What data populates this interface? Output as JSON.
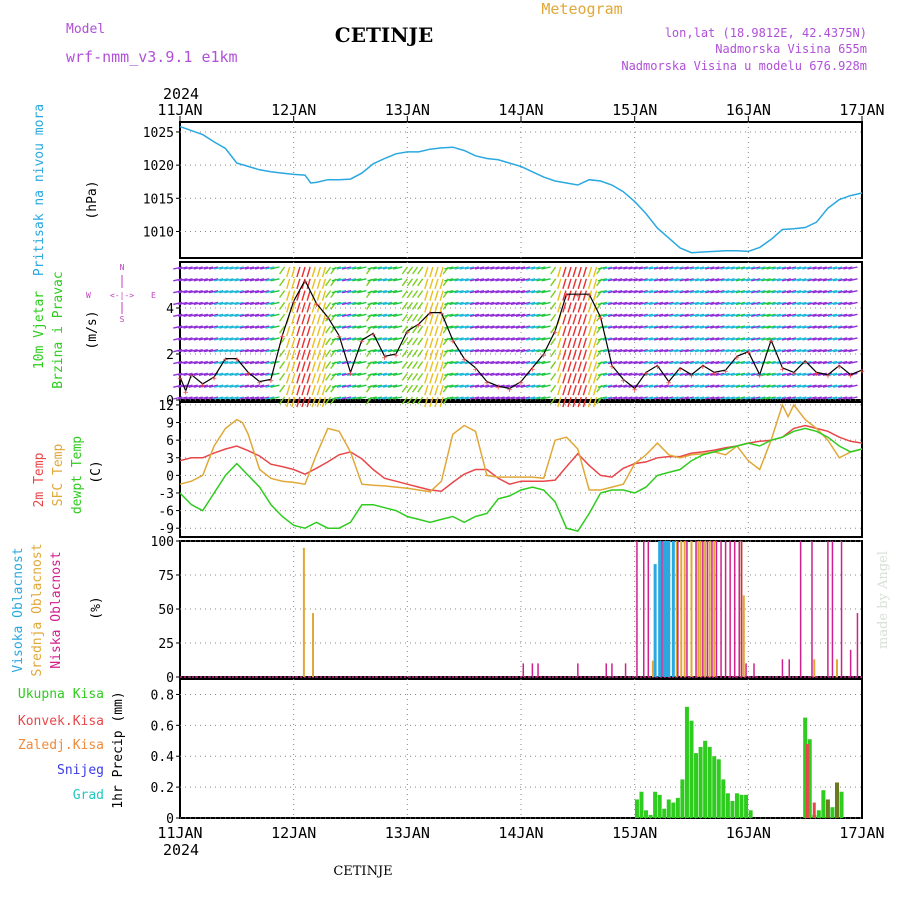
{
  "header": {
    "model_label": "Model",
    "model_name": "wrf-nmm_v3.9.1 e1km",
    "station": "CETINJE",
    "meteogram": "Meteogram",
    "lonlat": "lon,lat (18.9812E, 42.4375N)",
    "altitude": "Nadmorska Visina 655m",
    "model_altitude": "Nadmorska Visina u modelu 676.928m"
  },
  "footer": {
    "station": "CETINJE",
    "credit": "made by Angel"
  },
  "time_axis": {
    "year": "2024",
    "days": [
      "11JAN",
      "12JAN",
      "13JAN",
      "14JAN",
      "15JAN",
      "16JAN",
      "17JAN"
    ]
  },
  "colors": {
    "pressure": "#2aa8e0",
    "temp2m": "#e8474a",
    "tsfc": "#e0a838",
    "dewpt": "#2ecc1e",
    "high_cloud": "#2aa8e0",
    "mid_cloud": "#e0a838",
    "low_cloud": "#d0208e",
    "total_precip": "#2ecc1e",
    "conv_precip": "#e8474a",
    "frozen": "#f08a3a",
    "snow": "#3a3ae8",
    "hail": "#1ec8c0",
    "wind_label": "#2ecc1e",
    "compass": "#c040c0",
    "title_purple": "#b050d8"
  },
  "panels": {
    "pressure": {
      "label1": "Pritisak na nivou mora",
      "unit": "(hPa)",
      "ticks": [
        "1010",
        "1015",
        "1020",
        "1025"
      ]
    },
    "wind": {
      "label1": "10m Vjetar",
      "label2": "Brzina i Pravac",
      "unit": "(m/s)",
      "ticks": [
        "0",
        "2",
        "4"
      ],
      "compass": {
        "n": "N",
        "e": "E",
        "w": "W",
        "s": "S",
        "arrow": "<-|->"
      }
    },
    "temp": {
      "label1": "2m Temp",
      "label2": "SFC Temp",
      "label3": "dewpt Temp",
      "unit": "(C)",
      "ticks": [
        "-9",
        "-6",
        "-3",
        "0",
        "3",
        "6",
        "9",
        "12"
      ]
    },
    "cloud": {
      "label1": "Visoka Oblacnost",
      "label2": "Srednja Oblacnost",
      "label3": "Niska Oblacnost",
      "unit": "(%)",
      "ticks": [
        "0",
        "25",
        "50",
        "75",
        "100"
      ]
    },
    "precip": {
      "legend": [
        "Ukupna Kisa",
        "Konvek.Kisa",
        "Zaledj.Kisa",
        "Snijeg",
        "Grad"
      ],
      "unit": "1hr Precip (mm)",
      "ticks": [
        "0",
        "0.2",
        "0.4",
        "0.6",
        "0.8"
      ]
    }
  },
  "chart_data": [
    {
      "type": "line",
      "title": "Pritisak na nivou mora",
      "ylabel": "(hPa)",
      "ylim": [
        1006,
        1026.5
      ],
      "grid": true,
      "x_unit": "days since 11JAN 00UTC",
      "series": [
        {
          "name": "Pritisak na nivou mora",
          "x": [
            0,
            0.1,
            0.2,
            0.3,
            0.4,
            0.5,
            0.6,
            0.7,
            0.8,
            0.9,
            1.0,
            1.1,
            1.15,
            1.2,
            1.3,
            1.4,
            1.5,
            1.6,
            1.7,
            1.8,
            1.9,
            2.0,
            2.1,
            2.2,
            2.3,
            2.4,
            2.5,
            2.6,
            2.7,
            2.8,
            2.9,
            3.0,
            3.1,
            3.2,
            3.3,
            3.4,
            3.5,
            3.6,
            3.7,
            3.8,
            3.9,
            4.0,
            4.1,
            4.2,
            4.3,
            4.4,
            4.5,
            4.6,
            4.7,
            4.8,
            4.9,
            5.0,
            5.1,
            5.2,
            5.3,
            5.4,
            5.5,
            5.6,
            5.7,
            5.8,
            5.9,
            6.0
          ],
          "values": [
            1025.8,
            1025.2,
            1024.6,
            1023.5,
            1022.5,
            1020.3,
            1019.8,
            1019.3,
            1019.0,
            1018.8,
            1018.6,
            1018.5,
            1017.3,
            1017.4,
            1017.8,
            1017.8,
            1017.9,
            1018.8,
            1020.2,
            1021.0,
            1021.7,
            1022.0,
            1022.0,
            1022.4,
            1022.6,
            1022.7,
            1022.2,
            1021.4,
            1021.0,
            1020.8,
            1020.3,
            1019.8,
            1019.0,
            1018.2,
            1017.6,
            1017.3,
            1017.0,
            1017.8,
            1017.6,
            1017.0,
            1016.0,
            1014.5,
            1012.7,
            1010.5,
            1009.0,
            1007.5,
            1006.8,
            1006.9,
            1007.0,
            1007.1,
            1007.1,
            1007.0,
            1007.6,
            1008.8,
            1010.3,
            1010.4,
            1010.6,
            1011.4,
            1013.5,
            1014.8,
            1015.4,
            1015.8
          ]
        }
      ]
    },
    {
      "type": "line",
      "title": "10m Vjetar Brzina i Pravac",
      "ylabel": "(m/s)",
      "ylim": [
        0,
        6
      ],
      "grid": true,
      "x_unit": "days since 11JAN 00UTC",
      "series": [
        {
          "name": "10m Vjetar",
          "x": [
            0,
            0.05,
            0.1,
            0.2,
            0.3,
            0.4,
            0.5,
            0.6,
            0.7,
            0.8,
            0.9,
            1.0,
            1.1,
            1.2,
            1.3,
            1.4,
            1.5,
            1.6,
            1.7,
            1.8,
            1.9,
            2.0,
            2.1,
            2.2,
            2.3,
            2.4,
            2.5,
            2.6,
            2.7,
            2.8,
            2.9,
            3.0,
            3.1,
            3.2,
            3.3,
            3.4,
            3.5,
            3.6,
            3.7,
            3.8,
            3.9,
            4.0,
            4.1,
            4.2,
            4.3,
            4.4,
            4.5,
            4.6,
            4.7,
            4.8,
            4.9,
            5.0,
            5.1,
            5.2,
            5.3,
            5.4,
            5.5,
            5.6,
            5.7,
            5.8,
            5.9,
            6.0
          ],
          "values": [
            1.0,
            0.4,
            1.1,
            0.7,
            1.0,
            1.8,
            1.8,
            1.2,
            0.8,
            0.9,
            2.8,
            4.3,
            5.2,
            4.2,
            3.6,
            2.8,
            1.2,
            2.6,
            2.9,
            1.9,
            2.0,
            3.0,
            3.3,
            3.8,
            3.8,
            2.6,
            1.8,
            1.4,
            0.8,
            0.6,
            0.5,
            0.8,
            1.4,
            2.0,
            3.0,
            4.6,
            4.6,
            4.6,
            3.6,
            1.5,
            0.9,
            0.5,
            1.2,
            1.5,
            0.8,
            1.4,
            1.1,
            1.5,
            1.2,
            1.3,
            1.9,
            2.1,
            1.1,
            2.6,
            1.4,
            1.2,
            1.7,
            1.2,
            1.1,
            1.5,
            1.1,
            1.3
          ]
        }
      ]
    },
    {
      "type": "line",
      "title": "Temperature",
      "ylabel": "(C)",
      "ylim": [
        -10.5,
        12.5
      ],
      "grid": true,
      "x_unit": "days since 11JAN 00UTC",
      "series": [
        {
          "name": "2m Temp",
          "x": [
            0,
            0.1,
            0.2,
            0.3,
            0.4,
            0.5,
            0.6,
            0.7,
            0.8,
            0.9,
            1.0,
            1.1,
            1.2,
            1.3,
            1.4,
            1.5,
            1.6,
            1.7,
            1.8,
            1.9,
            2.0,
            2.1,
            2.2,
            2.3,
            2.4,
            2.5,
            2.6,
            2.7,
            2.8,
            2.9,
            3.0,
            3.1,
            3.2,
            3.3,
            3.4,
            3.5,
            3.6,
            3.7,
            3.8,
            3.9,
            4.0,
            4.1,
            4.2,
            4.3,
            4.4,
            4.5,
            4.6,
            4.7,
            4.8,
            4.9,
            5.0,
            5.1,
            5.2,
            5.3,
            5.4,
            5.5,
            5.6,
            5.7,
            5.8,
            5.9,
            6.0
          ],
          "values": [
            2.5,
            3.0,
            3.0,
            3.8,
            4.5,
            5.0,
            4.2,
            3.3,
            1.9,
            1.5,
            1.0,
            0.2,
            1.2,
            2.3,
            3.5,
            4.0,
            2.8,
            1.0,
            -0.5,
            -1.0,
            -1.5,
            -2.0,
            -2.5,
            -2.7,
            -1.2,
            0.2,
            1.0,
            1.0,
            -0.5,
            -1.5,
            -1.0,
            -1.0,
            -1.0,
            -0.8,
            1.5,
            3.7,
            1.7,
            0.0,
            -0.3,
            1.2,
            2.0,
            2.3,
            3.0,
            3.2,
            3.2,
            3.8,
            4.0,
            4.3,
            4.7,
            5.0,
            5.5,
            5.8,
            6.0,
            6.5,
            8.0,
            8.5,
            8.0,
            7.5,
            6.5,
            5.8,
            5.5
          ]
        },
        {
          "name": "SFC Temp",
          "x": [
            0,
            0.1,
            0.2,
            0.3,
            0.4,
            0.5,
            0.55,
            0.6,
            0.7,
            0.8,
            0.9,
            1.0,
            1.1,
            1.2,
            1.3,
            1.4,
            1.5,
            1.6,
            1.7,
            1.8,
            1.9,
            2.0,
            2.1,
            2.2,
            2.3,
            2.4,
            2.5,
            2.6,
            2.7,
            2.8,
            2.9,
            3.0,
            3.1,
            3.2,
            3.3,
            3.4,
            3.5,
            3.6,
            3.7,
            3.8,
            3.9,
            4.0,
            4.1,
            4.2,
            4.3,
            4.4,
            4.5,
            4.6,
            4.7,
            4.8,
            4.9,
            5.0,
            5.1,
            5.2,
            5.3,
            5.35,
            5.4,
            5.5,
            5.6,
            5.7,
            5.8,
            5.9,
            6.0
          ],
          "values": [
            -1.5,
            -1.0,
            0.0,
            5.0,
            8.0,
            9.5,
            9.0,
            7.0,
            1.0,
            -0.5,
            -1.0,
            -1.2,
            -1.5,
            3.5,
            8.0,
            7.5,
            4.0,
            -1.5,
            -1.7,
            -1.8,
            -2.0,
            -2.2,
            -2.5,
            -2.8,
            -1.0,
            7.0,
            8.5,
            7.5,
            0.0,
            -0.3,
            -0.3,
            -0.3,
            -0.3,
            -0.5,
            6.0,
            6.5,
            4.5,
            -2.5,
            -2.5,
            -2.0,
            -1.5,
            2.0,
            3.5,
            5.5,
            3.5,
            3.0,
            3.5,
            3.7,
            4.0,
            3.5,
            5.0,
            2.5,
            1.0,
            6.0,
            12.0,
            10.0,
            12.0,
            9.5,
            8.0,
            6.0,
            3.0,
            4.0,
            4.5
          ]
        },
        {
          "name": "dewpt Temp",
          "x": [
            0,
            0.1,
            0.2,
            0.3,
            0.4,
            0.5,
            0.6,
            0.7,
            0.8,
            0.9,
            1.0,
            1.1,
            1.2,
            1.3,
            1.4,
            1.5,
            1.6,
            1.7,
            1.8,
            1.9,
            2.0,
            2.1,
            2.2,
            2.3,
            2.4,
            2.5,
            2.6,
            2.7,
            2.8,
            2.9,
            3.0,
            3.1,
            3.2,
            3.3,
            3.4,
            3.5,
            3.6,
            3.7,
            3.8,
            3.9,
            4.0,
            4.1,
            4.2,
            4.3,
            4.4,
            4.5,
            4.6,
            4.7,
            4.8,
            4.9,
            5.0,
            5.1,
            5.2,
            5.3,
            5.4,
            5.5,
            5.6,
            5.7,
            5.8,
            5.9,
            6.0
          ],
          "values": [
            -3.0,
            -5.0,
            -6.0,
            -3.0,
            0.0,
            2.0,
            0.0,
            -2.0,
            -5.0,
            -7.0,
            -8.5,
            -9.0,
            -8.0,
            -9.0,
            -9.0,
            -8.0,
            -5.0,
            -5.0,
            -5.5,
            -6.0,
            -7.0,
            -7.5,
            -8.0,
            -7.5,
            -7.0,
            -8.0,
            -7.0,
            -6.5,
            -4.0,
            -3.5,
            -2.5,
            -2.0,
            -2.5,
            -4.5,
            -9.0,
            -9.5,
            -6.5,
            -3.0,
            -2.5,
            -2.5,
            -3.0,
            -2.0,
            0.0,
            0.5,
            1.0,
            2.5,
            3.5,
            4.0,
            4.5,
            5.0,
            5.5,
            5.0,
            6.0,
            6.5,
            7.5,
            8.0,
            7.5,
            6.5,
            5.0,
            4.0,
            4.5
          ]
        }
      ]
    },
    {
      "type": "bar",
      "title": "Oblacnost",
      "ylabel": "(%)",
      "ylim": [
        0,
        100
      ],
      "grid": true,
      "x_unit": "days since 11JAN 00UTC",
      "series": [
        {
          "name": "Visoka Oblacnost",
          "x": [
            4.18,
            4.22,
            4.26,
            4.28,
            4.3,
            4.34
          ],
          "values": [
            83,
            100,
            100,
            100,
            100,
            100
          ]
        },
        {
          "name": "Srednja Oblacnost",
          "x": [
            1.09,
            1.17,
            4.16,
            4.37,
            4.41,
            4.44,
            4.5,
            4.56,
            4.58,
            4.62,
            4.66,
            4.7,
            4.94,
            4.96,
            5.58,
            5.78
          ],
          "values": [
            95,
            47,
            12,
            100,
            100,
            100,
            100,
            100,
            100,
            100,
            100,
            100,
            100,
            60,
            13,
            13
          ]
        },
        {
          "name": "Niska Oblacnost",
          "x": [
            3.02,
            3.1,
            3.15,
            3.5,
            3.75,
            3.8,
            3.92,
            4.02,
            4.08,
            4.12,
            4.24,
            4.38,
            4.46,
            4.54,
            4.6,
            4.64,
            4.68,
            4.72,
            4.76,
            4.8,
            4.84,
            4.88,
            4.92,
            4.94,
            4.98,
            5.05,
            5.3,
            5.36,
            5.46,
            5.56,
            5.7,
            5.74,
            5.82,
            5.9,
            5.96
          ],
          "values": [
            10,
            10,
            10,
            10,
            10,
            10,
            10,
            100,
            100,
            100,
            100,
            100,
            100,
            100,
            100,
            100,
            100,
            100,
            100,
            100,
            100,
            100,
            100,
            100,
            10,
            10,
            13,
            13,
            100,
            100,
            100,
            100,
            100,
            20,
            47
          ]
        }
      ]
    },
    {
      "type": "bar",
      "title": "1hr Precip",
      "ylabel": "1hr Precip (mm)",
      "ylim": [
        0,
        0.9
      ],
      "grid": true,
      "x_unit": "days since 11JAN 00UTC",
      "series": [
        {
          "name": "Ukupna Kisa",
          "x": [
            4.02,
            4.06,
            4.1,
            4.14,
            4.18,
            4.22,
            4.26,
            4.3,
            4.34,
            4.38,
            4.42,
            4.46,
            4.5,
            4.54,
            4.58,
            4.62,
            4.66,
            4.7,
            4.74,
            4.78,
            4.82,
            4.86,
            4.9,
            4.94,
            4.98,
            5.02,
            5.5,
            5.54,
            5.58,
            5.62,
            5.66,
            5.7,
            5.74,
            5.78,
            5.82
          ],
          "values": [
            0.12,
            0.17,
            0.05,
            0.02,
            0.17,
            0.15,
            0.06,
            0.12,
            0.1,
            0.13,
            0.25,
            0.72,
            0.63,
            0.42,
            0.46,
            0.5,
            0.46,
            0.4,
            0.38,
            0.25,
            0.16,
            0.11,
            0.16,
            0.15,
            0.15,
            0.05,
            0.65,
            0.51,
            0.02,
            0.05,
            0.18,
            0.12,
            0.07,
            0.23,
            0.17
          ]
        },
        {
          "name": "Konvek.Kisa",
          "x": [
            5.52,
            5.58
          ],
          "values": [
            0.48,
            0.1
          ]
        },
        {
          "name": "Zaledj.Kisa",
          "x": [],
          "values": []
        },
        {
          "name": "Snijeg",
          "x": [],
          "values": []
        },
        {
          "name": "Grad",
          "x": [],
          "values": []
        }
      ]
    }
  ]
}
